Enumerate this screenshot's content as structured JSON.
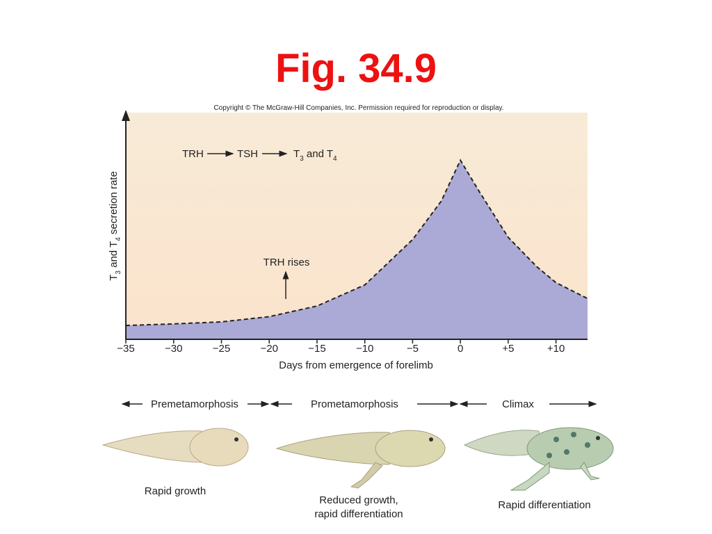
{
  "title": "Fig. 34.9",
  "copyright": "Copyright © The McGraw-Hill Companies, Inc. Permission required for reproduction or display.",
  "chart_data": {
    "type": "area",
    "x_label": "Days from emergence of forelimb",
    "y_label": [
      "T",
      "3",
      " and T",
      "4",
      " secretion rate"
    ],
    "chain": [
      "TRH",
      "TSH",
      "T",
      "3",
      " and T",
      "4"
    ],
    "annotation": "TRH rises",
    "x": [
      -35,
      -30,
      -25,
      -20,
      -15,
      -10,
      -5,
      -2,
      0,
      2,
      5,
      8,
      10,
      13.3
    ],
    "values": [
      6.1,
      6.8,
      7.7,
      10,
      14.7,
      24,
      44,
      61,
      79,
      65,
      45,
      32,
      25,
      18
    ],
    "color": "#aba9d5",
    "xlim": [
      -35,
      13.3
    ],
    "ylim": [
      0,
      100
    ],
    "xticks": [
      {
        "value": -35,
        "label": "−35"
      },
      {
        "value": -30,
        "label": "−30"
      },
      {
        "value": -25,
        "label": "−25"
      },
      {
        "value": -20,
        "label": "−20"
      },
      {
        "value": -15,
        "label": "−15"
      },
      {
        "value": -10,
        "label": "−10"
      },
      {
        "value": -5,
        "label": "−5"
      },
      0,
      {
        "value": 5,
        "label": "+5"
      },
      {
        "value": 10,
        "label": "+10"
      }
    ]
  },
  "stages": [
    "Premetamorphosis",
    "Prometamorphosis",
    "Climax"
  ],
  "captions": [
    [
      "Rapid growth"
    ],
    [
      "Reduced growth,",
      "rapid differentiation"
    ],
    [
      "Rapid differentiation"
    ]
  ]
}
